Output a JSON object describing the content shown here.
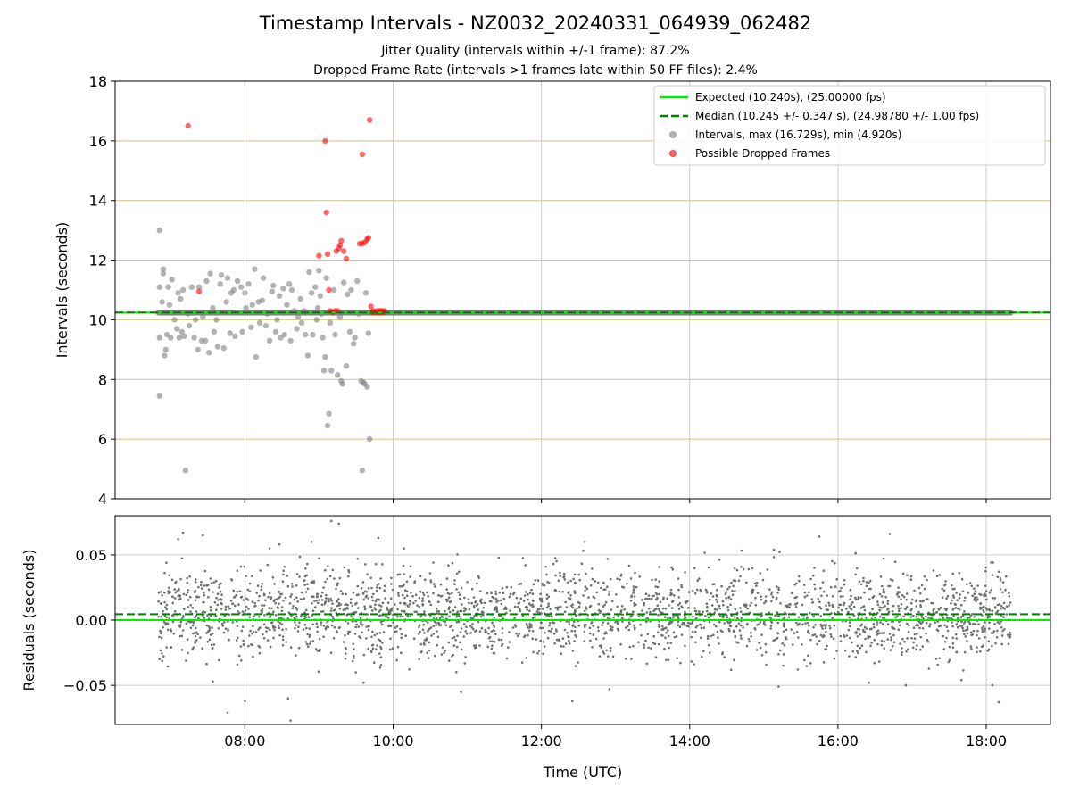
{
  "colors": {
    "expected": "#00ee00",
    "median": "#007f00",
    "intervals": "#808080",
    "dropped": "#ff0000",
    "hgrid_top": "#d2c38a",
    "vgrid": "#cccccc"
  },
  "chart_data": [
    {
      "type": "scatter",
      "title": "Timestamp Intervals - NZ0032_20240331_064939_062482",
      "subtitles": [
        "Jitter Quality (intervals within +/-1 frame): 87.2%",
        "Dropped Frame Rate (intervals >1 frames late within 50 FF files): 2.4%"
      ],
      "ylabel": "Intervals (seconds)",
      "ylim": [
        4,
        18
      ],
      "yticks": [
        4,
        6,
        8,
        10,
        12,
        14,
        16,
        18
      ],
      "xlim": [
        "06:15",
        "18:52"
      ],
      "xticks": [
        "08:00",
        "10:00",
        "12:00",
        "14:00",
        "16:00",
        "18:00"
      ],
      "x_tick_labels_shown": false,
      "x_range_data": [
        "06:50",
        "18:20"
      ],
      "grid": "on",
      "legend_position": "upper right",
      "legend": [
        "Expected (10.240s), (25.00000 fps)",
        "Median (10.245 +/- 0.347 s), (24.98780 +/- 1.00 fps)",
        "Intervals, max (16.729s), min (4.920s)",
        "Possible Dropped Frames"
      ],
      "lines": [
        {
          "name": "Expected",
          "y": 10.24,
          "style": "solid",
          "color": "#00ee00"
        },
        {
          "name": "Median",
          "y": 10.245,
          "style": "dashed",
          "color": "#007f00"
        }
      ],
      "series": [
        {
          "name": "Intervals",
          "color": "#808080",
          "baseline": 10.24,
          "baseline_x_range": [
            "06:50",
            "18:20"
          ],
          "points": [
            [
              "06:51",
              13.0
            ],
            [
              "06:51",
              7.45
            ],
            [
              "06:51",
              11.1
            ],
            [
              "06:51",
              9.4
            ],
            [
              "06:53",
              10.6
            ],
            [
              "06:54",
              11.55
            ],
            [
              "06:54",
              11.7
            ],
            [
              "06:55",
              8.8
            ],
            [
              "06:56",
              9.0
            ],
            [
              "06:57",
              9.5
            ],
            [
              "06:58",
              11.1
            ],
            [
              "06:59",
              10.5
            ],
            [
              "07:00",
              9.4
            ],
            [
              "07:01",
              11.35
            ],
            [
              "07:03",
              10.0
            ],
            [
              "07:05",
              9.7
            ],
            [
              "07:06",
              10.9
            ],
            [
              "07:07",
              9.4
            ],
            [
              "07:08",
              10.7
            ],
            [
              "07:09",
              9.6
            ],
            [
              "07:10",
              11.0
            ],
            [
              "07:11",
              9.45
            ],
            [
              "07:12",
              4.95
            ],
            [
              "07:14",
              10.2
            ],
            [
              "07:15",
              9.8
            ],
            [
              "07:17",
              11.1
            ],
            [
              "07:19",
              9.4
            ],
            [
              "07:20",
              10.0
            ],
            [
              "07:22",
              9.0
            ],
            [
              "07:23",
              11.1
            ],
            [
              "07:25",
              9.3
            ],
            [
              "07:26",
              10.1
            ],
            [
              "07:28",
              9.3
            ],
            [
              "07:29",
              11.3
            ],
            [
              "07:31",
              8.9
            ],
            [
              "07:32",
              11.55
            ],
            [
              "07:34",
              10.4
            ],
            [
              "07:35",
              9.6
            ],
            [
              "07:37",
              10.0
            ],
            [
              "07:38",
              9.1
            ],
            [
              "07:40",
              11.2
            ],
            [
              "07:41",
              11.5
            ],
            [
              "07:43",
              9.05
            ],
            [
              "07:45",
              10.6
            ],
            [
              "07:46",
              11.4
            ],
            [
              "07:48",
              9.55
            ],
            [
              "07:49",
              10.9
            ],
            [
              "07:51",
              11.0
            ],
            [
              "07:52",
              9.45
            ],
            [
              "07:54",
              11.3
            ],
            [
              "07:55",
              10.25
            ],
            [
              "07:57",
              11.1
            ],
            [
              "07:58",
              9.6
            ],
            [
              "08:00",
              10.9
            ],
            [
              "08:01",
              10.4
            ],
            [
              "08:03",
              11.2
            ],
            [
              "08:05",
              9.75
            ],
            [
              "08:06",
              10.5
            ],
            [
              "08:08",
              11.7
            ],
            [
              "08:09",
              8.75
            ],
            [
              "08:11",
              10.6
            ],
            [
              "08:12",
              9.9
            ],
            [
              "08:14",
              10.65
            ],
            [
              "08:15",
              11.4
            ],
            [
              "08:17",
              9.8
            ],
            [
              "08:18",
              10.2
            ],
            [
              "08:20",
              9.3
            ],
            [
              "08:22",
              10.95
            ],
            [
              "08:23",
              11.15
            ],
            [
              "08:25",
              9.6
            ],
            [
              "08:26",
              10.0
            ],
            [
              "08:28",
              10.8
            ],
            [
              "08:29",
              9.4
            ],
            [
              "08:31",
              11.05
            ],
            [
              "08:32",
              9.5
            ],
            [
              "08:34",
              10.5
            ],
            [
              "08:36",
              11.2
            ],
            [
              "08:37",
              9.3
            ],
            [
              "08:38",
              11.0
            ],
            [
              "08:40",
              10.3
            ],
            [
              "08:42",
              9.7
            ],
            [
              "08:43",
              10.1
            ],
            [
              "08:45",
              10.7
            ],
            [
              "08:46",
              9.9
            ],
            [
              "08:48",
              10.3
            ],
            [
              "08:49",
              9.5
            ],
            [
              "08:51",
              8.8
            ],
            [
              "08:52",
              11.6
            ],
            [
              "08:54",
              10.9
            ],
            [
              "08:55",
              9.5
            ],
            [
              "08:57",
              11.1
            ],
            [
              "08:58",
              10.0
            ],
            [
              "08:59",
              10.4
            ],
            [
              "09:00",
              11.65
            ],
            [
              "09:01",
              10.8
            ],
            [
              "09:02",
              10.2
            ],
            [
              "09:03",
              9.4
            ],
            [
              "09:04",
              8.3
            ],
            [
              "09:05",
              8.75
            ],
            [
              "09:06",
              11.4
            ],
            [
              "09:07",
              6.45
            ],
            [
              "09:08",
              6.85
            ],
            [
              "09:09",
              9.9
            ],
            [
              "09:10",
              8.3
            ],
            [
              "09:12",
              11.0
            ],
            [
              "09:13",
              9.5
            ],
            [
              "09:15",
              8.15
            ],
            [
              "09:17",
              10.1
            ],
            [
              "09:18",
              7.95
            ],
            [
              "09:19",
              7.85
            ],
            [
              "09:20",
              11.25
            ],
            [
              "09:22",
              8.45
            ],
            [
              "09:23",
              10.85
            ],
            [
              "09:25",
              9.6
            ],
            [
              "09:26",
              11.0
            ],
            [
              "09:28",
              9.2
            ],
            [
              "09:29",
              9.4
            ],
            [
              "09:31",
              11.3
            ],
            [
              "09:32",
              10.2
            ],
            [
              "09:34",
              7.95
            ],
            [
              "09:35",
              4.95
            ],
            [
              "09:36",
              7.9
            ],
            [
              "09:37",
              7.85
            ],
            [
              "09:38",
              10.9
            ],
            [
              "09:39",
              7.75
            ],
            [
              "09:40",
              9.55
            ],
            [
              "09:41",
              6.0
            ]
          ]
        },
        {
          "name": "Possible Dropped Frames",
          "color": "#ff0000",
          "points": [
            [
              "07:14",
              16.5
            ],
            [
              "07:23",
              10.95
            ],
            [
              "09:00",
              12.15
            ],
            [
              "09:05",
              16.0
            ],
            [
              "09:06",
              13.6
            ],
            [
              "09:07",
              12.2
            ],
            [
              "09:08",
              11.0
            ],
            [
              "09:09",
              10.3
            ],
            [
              "09:11",
              10.25
            ],
            [
              "09:13",
              10.3
            ],
            [
              "09:14",
              12.3
            ],
            [
              "09:15",
              10.3
            ],
            [
              "09:16",
              12.4
            ],
            [
              "09:17",
              12.5
            ],
            [
              "09:18",
              12.65
            ],
            [
              "09:20",
              12.3
            ],
            [
              "09:22",
              12.05
            ],
            [
              "09:33",
              12.55
            ],
            [
              "09:35",
              12.55
            ],
            [
              "09:35",
              15.55
            ],
            [
              "09:37",
              12.6
            ],
            [
              "09:39",
              12.7
            ],
            [
              "09:40",
              12.75
            ],
            [
              "09:41",
              16.7
            ],
            [
              "09:42",
              10.45
            ],
            [
              "09:43",
              10.25
            ],
            [
              "09:44",
              10.3
            ],
            [
              "09:45",
              10.25
            ],
            [
              "09:47",
              10.3
            ],
            [
              "09:48",
              10.25
            ],
            [
              "09:49",
              10.3
            ],
            [
              "09:50",
              10.25
            ],
            [
              "09:51",
              10.3
            ],
            [
              "09:52",
              10.25
            ],
            [
              "09:53",
              10.3
            ]
          ]
        }
      ]
    },
    {
      "type": "scatter",
      "ylabel": "Residuals (seconds)",
      "xlabel": "Time (UTC)",
      "ylim": [
        -0.08,
        0.08
      ],
      "yticks": [
        -0.05,
        0.0,
        0.05
      ],
      "ytick_labels": [
        "−0.05",
        "0.00",
        "0.05"
      ],
      "xlim": [
        "06:15",
        "18:52"
      ],
      "xticks": [
        "08:00",
        "10:00",
        "12:00",
        "14:00",
        "16:00",
        "18:00"
      ],
      "xtick_labels": [
        "08:00",
        "10:00",
        "12:00",
        "14:00",
        "16:00",
        "18:00"
      ],
      "grid": "on",
      "lines": [
        {
          "name": "Expected",
          "y": 0.0,
          "style": "solid",
          "color": "#00ee00"
        },
        {
          "name": "Median",
          "y": 0.0045,
          "style": "dashed",
          "color": "#007f00"
        }
      ],
      "series": [
        {
          "name": "Residuals",
          "color": "#707070",
          "x_range": [
            "06:50",
            "18:20"
          ],
          "count": 2600,
          "mean": 0.005,
          "std": 0.02,
          "bounds": [
            -0.078,
            0.076
          ],
          "points_outliers": [
            [
              "07:06",
              0.062
            ],
            [
              "07:10",
              0.067
            ],
            [
              "07:26",
              0.065
            ],
            [
              "07:34",
              -0.047
            ],
            [
              "07:46",
              -0.071
            ],
            [
              "08:00",
              -0.062
            ],
            [
              "08:20",
              0.055
            ],
            [
              "08:28",
              0.058
            ],
            [
              "08:35",
              -0.06
            ],
            [
              "08:37",
              -0.077
            ],
            [
              "08:54",
              0.06
            ],
            [
              "09:10",
              0.076
            ],
            [
              "09:16",
              0.074
            ],
            [
              "09:36",
              -0.048
            ],
            [
              "09:48",
              0.063
            ],
            [
              "10:55",
              -0.055
            ],
            [
              "12:25",
              -0.062
            ],
            [
              "12:35",
              0.06
            ],
            [
              "12:55",
              -0.053
            ],
            [
              "15:12",
              -0.051
            ],
            [
              "15:45",
              0.064
            ],
            [
              "16:25",
              -0.048
            ],
            [
              "16:42",
              0.066
            ],
            [
              "16:55",
              -0.05
            ],
            [
              "17:40",
              -0.046
            ],
            [
              "18:05",
              -0.05
            ],
            [
              "18:10",
              -0.063
            ]
          ]
        }
      ]
    }
  ]
}
